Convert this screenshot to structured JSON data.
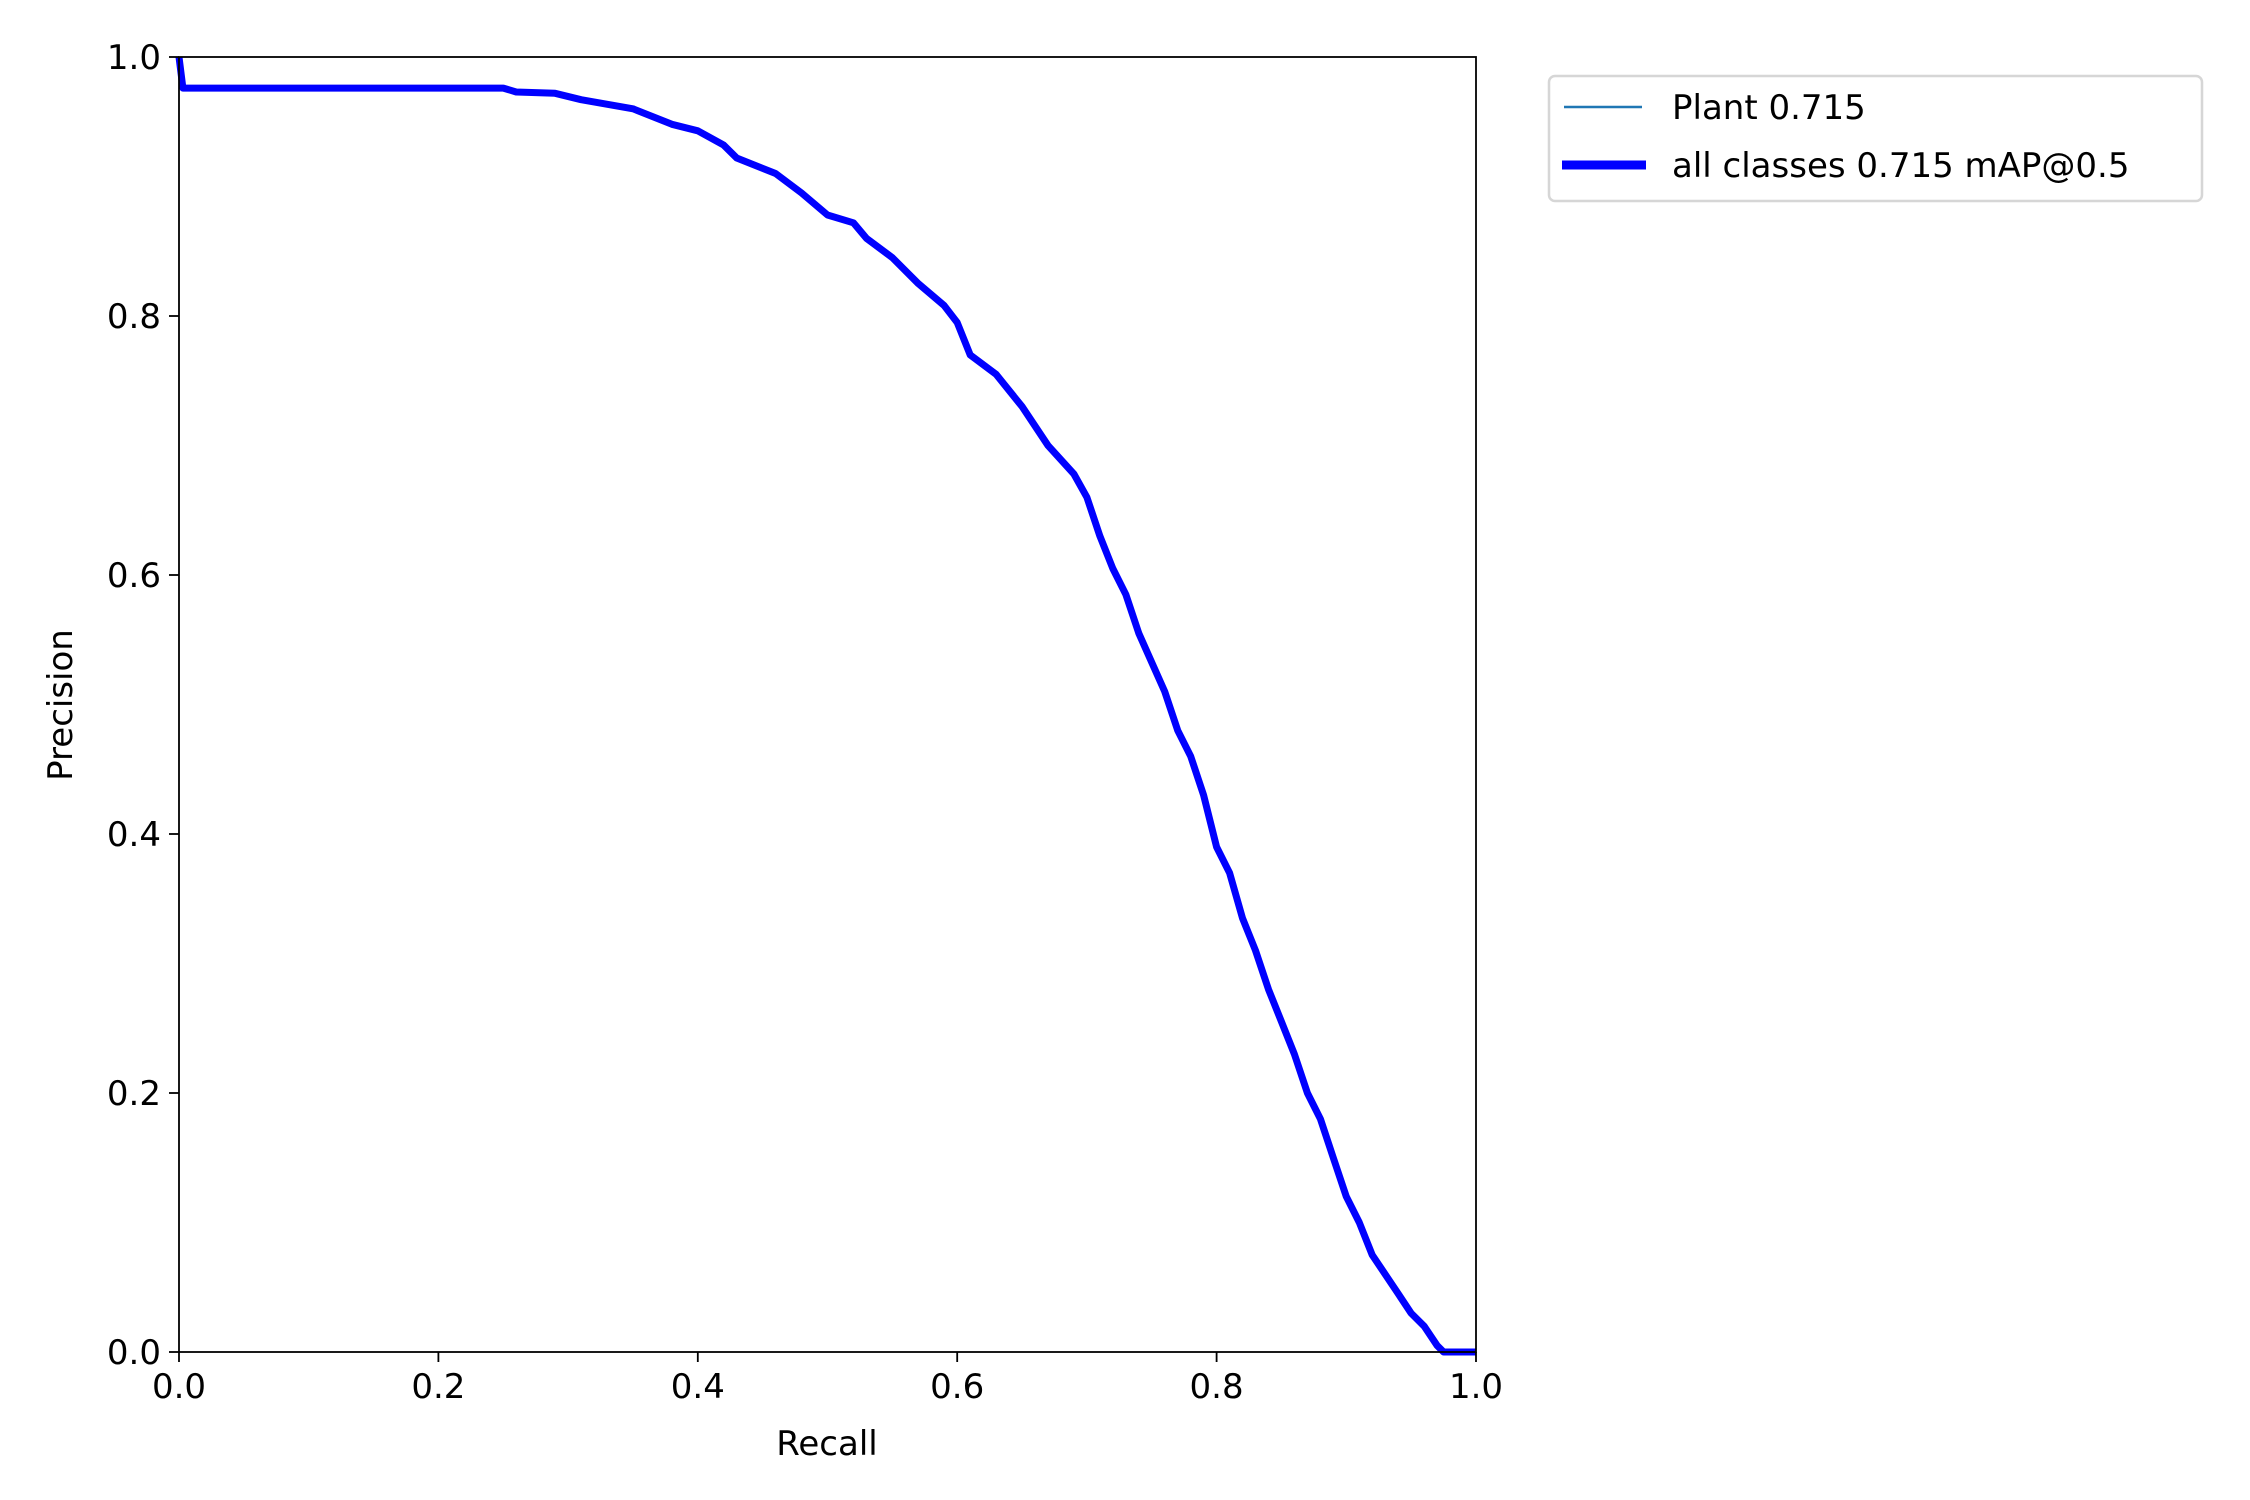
{
  "chart_data": {
    "type": "line",
    "title": "",
    "xlabel": "Recall",
    "ylabel": "Precision",
    "xlim": [
      0,
      1
    ],
    "ylim": [
      0,
      1
    ],
    "grid": false,
    "legend_placement": "outside-top-right",
    "xticks": [
      "0.0",
      "0.2",
      "0.4",
      "0.6",
      "0.8",
      "1.0"
    ],
    "yticks": [
      "0.0",
      "0.2",
      "0.4",
      "0.6",
      "0.8",
      "1.0"
    ],
    "x": [
      0,
      0.003,
      0.1,
      0.25,
      0.26,
      0.29,
      0.31,
      0.35,
      0.38,
      0.4,
      0.42,
      0.43,
      0.46,
      0.48,
      0.5,
      0.52,
      0.53,
      0.55,
      0.57,
      0.59,
      0.6,
      0.61,
      0.63,
      0.65,
      0.67,
      0.69,
      0.7,
      0.71,
      0.72,
      0.73,
      0.74,
      0.76,
      0.77,
      0.78,
      0.79,
      0.8,
      0.81,
      0.82,
      0.83,
      0.84,
      0.85,
      0.86,
      0.87,
      0.88,
      0.89,
      0.9,
      0.91,
      0.92,
      0.93,
      0.94,
      0.95,
      0.96,
      0.97,
      0.975,
      1.0
    ],
    "series": [
      {
        "name": "Plant 0.715",
        "color": "#1f77b4",
        "values": [
          1.0,
          0.976,
          0.976,
          0.976,
          0.973,
          0.972,
          0.967,
          0.96,
          0.948,
          0.943,
          0.932,
          0.922,
          0.91,
          0.895,
          0.878,
          0.872,
          0.86,
          0.845,
          0.825,
          0.808,
          0.795,
          0.77,
          0.755,
          0.73,
          0.7,
          0.678,
          0.66,
          0.63,
          0.605,
          0.585,
          0.555,
          0.51,
          0.48,
          0.46,
          0.43,
          0.39,
          0.37,
          0.335,
          0.31,
          0.28,
          0.255,
          0.23,
          0.2,
          0.18,
          0.15,
          0.12,
          0.1,
          0.075,
          0.06,
          0.045,
          0.03,
          0.02,
          0.005,
          0,
          0
        ]
      },
      {
        "name": "all classes 0.715 mAP@0.5",
        "color": "#0000ff",
        "values": [
          1.0,
          0.976,
          0.976,
          0.976,
          0.973,
          0.972,
          0.967,
          0.96,
          0.948,
          0.943,
          0.932,
          0.922,
          0.91,
          0.895,
          0.878,
          0.872,
          0.86,
          0.845,
          0.825,
          0.808,
          0.795,
          0.77,
          0.755,
          0.73,
          0.7,
          0.678,
          0.66,
          0.63,
          0.605,
          0.585,
          0.555,
          0.51,
          0.48,
          0.46,
          0.43,
          0.39,
          0.37,
          0.335,
          0.31,
          0.28,
          0.255,
          0.23,
          0.2,
          0.18,
          0.15,
          0.12,
          0.1,
          0.075,
          0.06,
          0.045,
          0.03,
          0.02,
          0.005,
          0,
          0
        ]
      }
    ]
  }
}
